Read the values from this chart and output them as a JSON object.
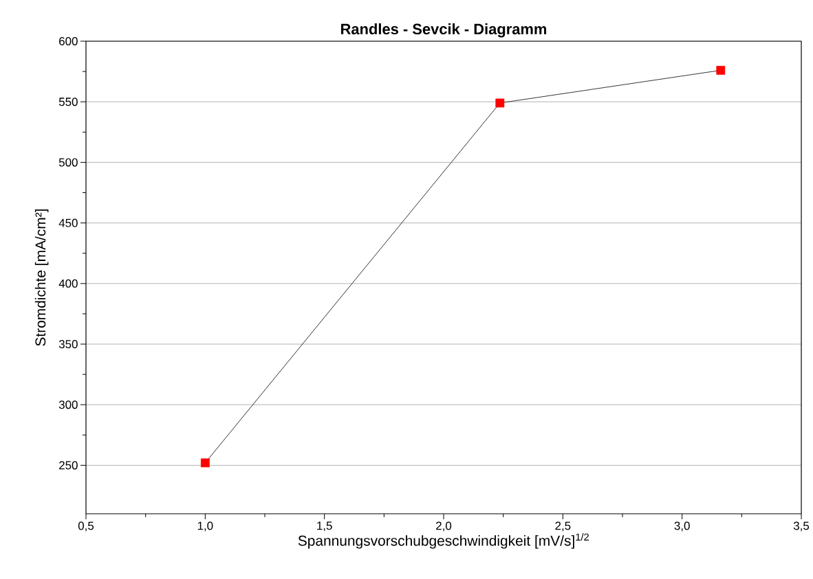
{
  "chart_data": {
    "type": "line",
    "title": "Randles - Sevcik - Diagramm",
    "xlabel": "Spannungsvorschubgeschwindigkeit [mV/s]$^{1/2}$",
    "ylabel": "Stromdichte [mA/cm²]",
    "x": [
      1.0,
      2.236,
      3.162
    ],
    "series": [
      {
        "color": "#ff0000",
        "values": [
          252,
          549,
          576
        ]
      }
    ],
    "xlim": [
      0.5,
      3.5
    ],
    "ylim": [
      210,
      600
    ],
    "xticks": [
      {
        "value": 0.5,
        "label": "0,5"
      },
      {
        "value": 1.0,
        "label": "1,0"
      },
      {
        "value": 1.5,
        "label": "1,5"
      },
      {
        "value": 2.0,
        "label": "2,0"
      },
      {
        "value": 2.5,
        "label": "2,5"
      },
      {
        "value": 3.0,
        "label": "3,0"
      },
      {
        "value": 3.5,
        "label": "3,5"
      }
    ],
    "yticks": [
      250,
      300,
      350,
      400,
      450,
      500,
      550,
      600
    ],
    "grid": "y",
    "marker": "square",
    "line_style": "solid"
  }
}
